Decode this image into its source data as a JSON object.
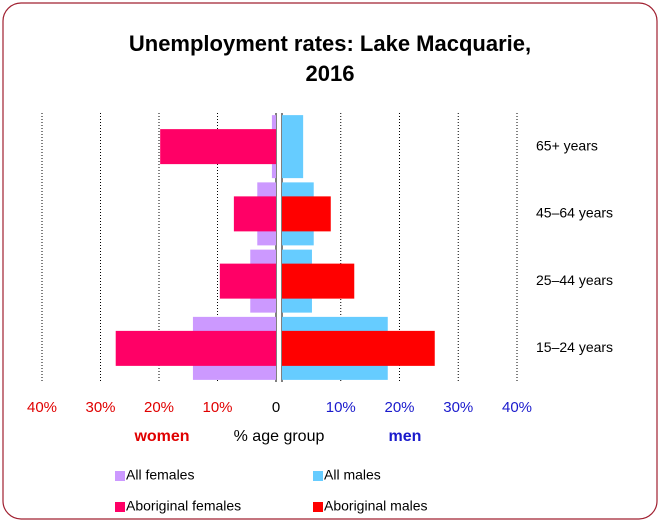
{
  "chart_data": {
    "type": "butterfly",
    "title": [
      "Unemployment rates: Lake Macquarie,",
      "2016"
    ],
    "xlabel": "% age group",
    "left_label": "women",
    "right_label": "men",
    "categories": [
      "65+ years",
      "45–64 years",
      "25–44 years",
      "15–24 years"
    ],
    "series": [
      {
        "name": "All females",
        "color": "#cc99ff",
        "values": [
          0.7,
          3.2,
          4.4,
          14.2
        ]
      },
      {
        "name": "All males",
        "color": "#66ccff",
        "values": [
          3.6,
          5.4,
          5.1,
          18.0
        ]
      },
      {
        "name": "Aboriginal females",
        "color": "#ff0066",
        "values": [
          19.8,
          7.2,
          9.6,
          27.4
        ]
      },
      {
        "name": "Aboriginal males",
        "color": "#ff0000",
        "values": [
          null,
          8.3,
          12.3,
          26.0
        ]
      }
    ],
    "xlim": [
      0,
      40
    ],
    "xticks_left": [
      0,
      {
        "value": 10,
        "label": "10%"
      },
      {
        "value": 20,
        "label": "20%"
      },
      {
        "value": 30,
        "label": "30%"
      },
      {
        "value": 40,
        "label": "40%"
      }
    ],
    "xticks_right": [
      {
        "value": 10,
        "label": "10%"
      },
      {
        "value": 20,
        "label": "20%"
      },
      {
        "value": 30,
        "label": "30%"
      },
      {
        "value": 40,
        "label": "40%"
      }
    ],
    "left_tick_color": "#e00000",
    "right_tick_color": "#1a1acc",
    "grid": true
  }
}
